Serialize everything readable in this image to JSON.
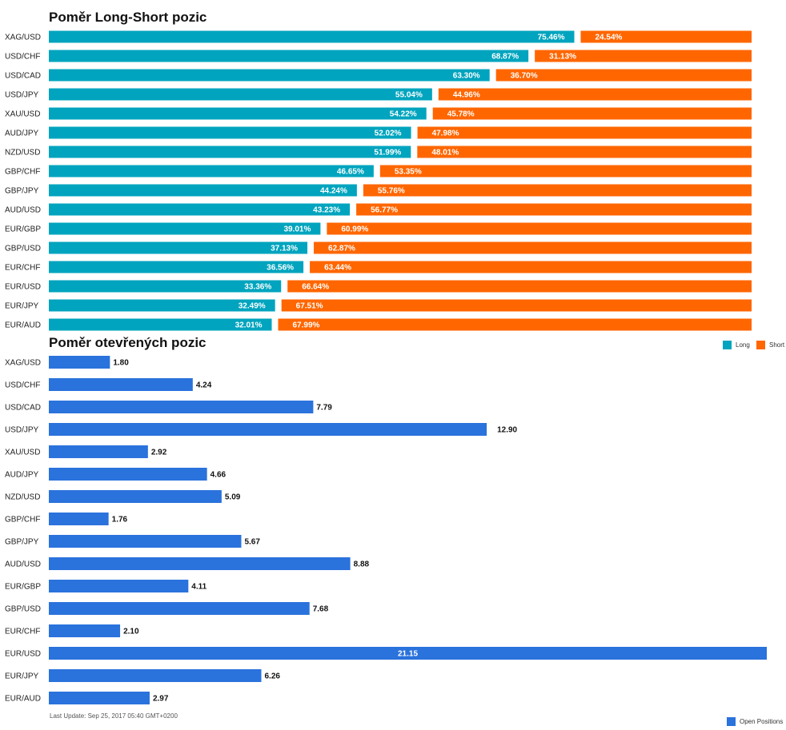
{
  "colors": {
    "long": "#00a4be",
    "short": "#ff6600",
    "open": "#2a72dc"
  },
  "footer": {
    "last_update": "Last Update: Sep 25, 2017 05:40 GMT+0200"
  },
  "chart_data": [
    {
      "type": "bar",
      "orientation": "horizontal",
      "stacked": true,
      "title": "Poměr Long-Short pozic",
      "categories": [
        "XAG/USD",
        "USD/CHF",
        "USD/CAD",
        "USD/JPY",
        "XAU/USD",
        "AUD/JPY",
        "NZD/USD",
        "GBP/CHF",
        "GBP/JPY",
        "AUD/USD",
        "EUR/GBP",
        "GBP/USD",
        "EUR/CHF",
        "EUR/USD",
        "EUR/JPY",
        "EUR/AUD"
      ],
      "series": [
        {
          "name": "Long",
          "values": [
            75.46,
            68.87,
            63.3,
            55.04,
            54.22,
            52.02,
            51.99,
            46.65,
            44.24,
            43.23,
            39.01,
            37.13,
            36.56,
            33.36,
            32.49,
            32.01
          ],
          "labels": [
            "75.46%",
            "68.87%",
            "63.30%",
            "55.04%",
            "54.22%",
            "52.02%",
            "51.99%",
            "46.65%",
            "44.24%",
            "43.23%",
            "39.01%",
            "37.13%",
            "36.56%",
            "33.36%",
            "32.49%",
            "32.01%"
          ]
        },
        {
          "name": "Short",
          "values": [
            24.54,
            31.13,
            36.7,
            44.96,
            45.78,
            47.98,
            48.01,
            53.35,
            55.76,
            56.77,
            60.99,
            62.87,
            63.44,
            66.64,
            67.51,
            67.99
          ],
          "labels": [
            "24.54%",
            "31.13%",
            "36.70%",
            "44.96%",
            "45.78%",
            "47.98%",
            "48.01%",
            "53.35%",
            "55.76%",
            "56.77%",
            "60.99%",
            "62.87%",
            "63.44%",
            "66.64%",
            "67.51%",
            "67.99%"
          ]
        }
      ],
      "xlim": [
        0,
        100
      ],
      "legend": "bottom-right"
    },
    {
      "type": "bar",
      "orientation": "horizontal",
      "title": "Poměr otevřených pozic",
      "categories": [
        "XAG/USD",
        "USD/CHF",
        "USD/CAD",
        "USD/JPY",
        "XAU/USD",
        "AUD/JPY",
        "NZD/USD",
        "GBP/CHF",
        "GBP/JPY",
        "AUD/USD",
        "EUR/GBP",
        "GBP/USD",
        "EUR/CHF",
        "EUR/USD",
        "EUR/JPY",
        "EUR/AUD"
      ],
      "series": [
        {
          "name": "Open Positions",
          "values": [
            1.8,
            4.24,
            7.79,
            12.9,
            2.92,
            4.66,
            5.09,
            1.76,
            5.67,
            8.88,
            4.11,
            7.68,
            2.1,
            21.15,
            6.26,
            2.97
          ],
          "labels": [
            "1.80",
            "4.24",
            "7.79",
            "12.90",
            "2.92",
            "4.66",
            "5.09",
            "1.76",
            "5.67",
            "8.88",
            "4.11",
            "7.68",
            "2.10",
            "21.15",
            "6.26",
            "2.97"
          ]
        }
      ],
      "legend": "bottom-right"
    }
  ]
}
